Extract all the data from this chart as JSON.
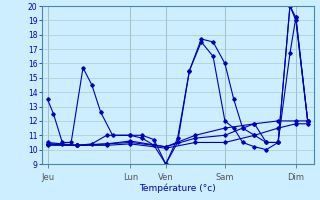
{
  "xlabel": "Température (°c)",
  "background_color": "#cceeff",
  "grid_color": "#aacccc",
  "line_color": "#0000bb",
  "ylim": [
    9,
    20
  ],
  "day_labels": [
    "Jeu",
    "Lun",
    "Ven",
    "Sam",
    "Dim"
  ],
  "day_positions": [
    0,
    28,
    40,
    60,
    84
  ],
  "s1_x": [
    0,
    2,
    5,
    8,
    12,
    15,
    18,
    22,
    28,
    32,
    36,
    40,
    44,
    48,
    52,
    56,
    60,
    63,
    66,
    70,
    74,
    78,
    82,
    84,
    88
  ],
  "s1_y": [
    13.5,
    12.5,
    10.5,
    10.5,
    15.7,
    14.5,
    12.6,
    11.0,
    11.0,
    11.0,
    10.7,
    9.0,
    10.8,
    15.5,
    17.7,
    17.5,
    16.0,
    13.5,
    11.5,
    11.0,
    10.5,
    10.5,
    20.0,
    19.2,
    12.0
  ],
  "s2_x": [
    0,
    5,
    10,
    15,
    20,
    28,
    32,
    36,
    40,
    44,
    48,
    52,
    56,
    60,
    63,
    66,
    70,
    74,
    78,
    82,
    84,
    88
  ],
  "s2_y": [
    10.5,
    10.4,
    10.3,
    10.4,
    11.0,
    11.0,
    10.8,
    10.3,
    9.0,
    10.5,
    15.5,
    17.5,
    16.5,
    12.0,
    11.5,
    10.5,
    10.2,
    10.0,
    10.5,
    20.0,
    19.0,
    12.0
  ],
  "s3_x": [
    0,
    10,
    20,
    28,
    40,
    50,
    60,
    66,
    70,
    74,
    78,
    82,
    84,
    88
  ],
  "s3_y": [
    10.4,
    10.3,
    10.4,
    10.6,
    10.2,
    10.8,
    11.0,
    11.5,
    11.8,
    10.5,
    10.5,
    16.7,
    19.2,
    12.0
  ],
  "s4_x": [
    0,
    10,
    20,
    28,
    40,
    50,
    60,
    70,
    78,
    84,
    88
  ],
  "s4_y": [
    10.4,
    10.3,
    10.4,
    10.5,
    10.2,
    11.0,
    11.5,
    11.8,
    12.0,
    12.0,
    12.0
  ],
  "s5_x": [
    0,
    10,
    20,
    28,
    40,
    50,
    60,
    70,
    78,
    84,
    88
  ],
  "s5_y": [
    10.3,
    10.3,
    10.3,
    10.4,
    10.1,
    10.5,
    10.5,
    11.0,
    11.5,
    11.8,
    11.8
  ]
}
